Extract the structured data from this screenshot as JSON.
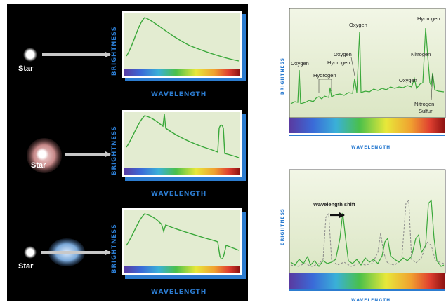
{
  "colors": {
    "curve": "#3aa83a",
    "axis_label": "#2c7cd0",
    "panel_bg": "#000000",
    "plot_bg": "#e3ecd1",
    "frame": "#ffffff",
    "accent_blue": "#2c7cd0"
  },
  "left": {
    "rows": [
      {
        "star_label": "Star",
        "y_label": "BRIGHTNESS",
        "x_label": "WAVELENGTH"
      },
      {
        "star_label": "Star",
        "y_label": "BRIGHTNESS",
        "x_label": "WAVELENGTH"
      },
      {
        "star_label": "Star",
        "y_label": "BRIGHTNESS",
        "x_label": "WAVELENGTH"
      }
    ]
  },
  "right_top": {
    "y_label": "BRIGHTNESS",
    "x_label": "WAVELENGTH",
    "annotations": [
      "Oxygen",
      "Hydrogen",
      "Oxygen",
      "Oxygen",
      "Hydrogen",
      "Hydrogen",
      "Nitrogen",
      "Oxygen",
      "Nitrogen",
      "Sulfur"
    ]
  },
  "right_bottom": {
    "y_label": "BRIGHTNESS",
    "x_label": "WAVELENGTH",
    "shift_label": "Wavelength shift"
  }
}
